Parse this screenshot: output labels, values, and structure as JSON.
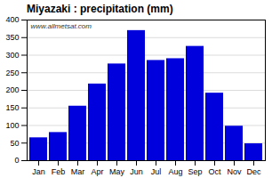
{
  "chart_data": {
    "type": "bar",
    "title": "Miyazaki : precipitation (mm)",
    "categories": [
      "Jan",
      "Feb",
      "Mar",
      "Apr",
      "May",
      "Jun",
      "Jul",
      "Aug",
      "Sep",
      "Oct",
      "Nov",
      "Dec"
    ],
    "values": [
      65,
      80,
      155,
      218,
      275,
      370,
      285,
      290,
      325,
      192,
      98,
      48
    ],
    "color": "#0000dd",
    "ylim": [
      0,
      400
    ],
    "yticks": [
      0,
      50,
      100,
      150,
      200,
      250,
      300,
      350,
      400
    ],
    "grid": true,
    "annotations": [
      "www.allmetsat.com"
    ]
  }
}
